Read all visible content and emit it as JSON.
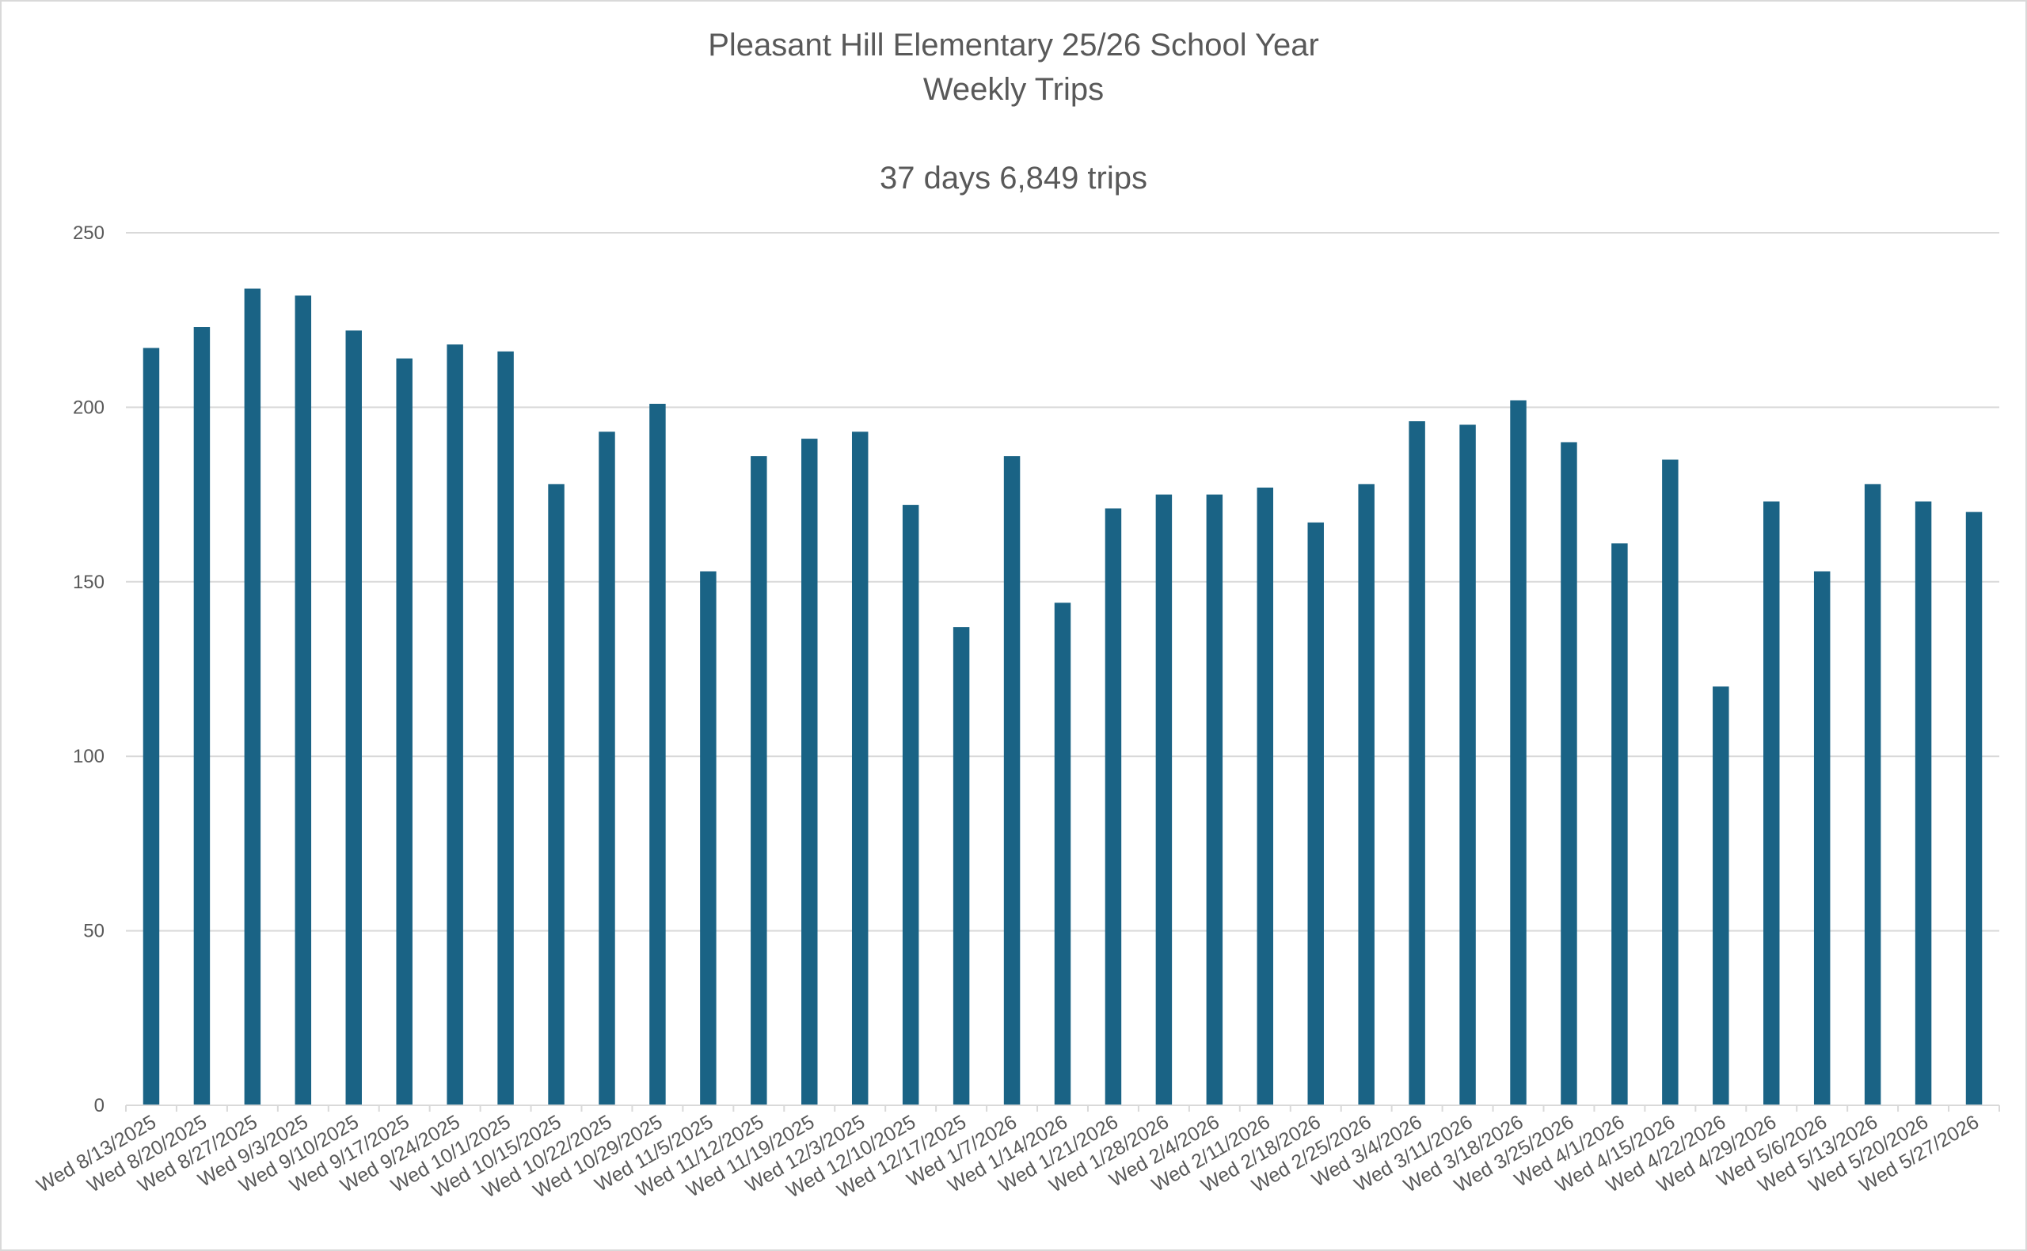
{
  "chart_data": {
    "type": "bar",
    "title_lines": [
      "Pleasant Hill Elementary 25/26 School Year",
      "Weekly Trips",
      "",
      "37 days 6,849 trips"
    ],
    "xlabel": "",
    "ylabel": "",
    "ylim": [
      0,
      250
    ],
    "y_ticks": [
      0,
      50,
      100,
      150,
      200,
      250
    ],
    "y_tick_labels": [
      "0",
      "50",
      "100",
      "150",
      "200",
      "250"
    ],
    "grid": true,
    "legend": "none",
    "bar_color": "#1a6385",
    "categories": [
      "Wed 8/13/2025",
      "Wed 8/20/2025",
      "Wed 8/27/2025",
      "Wed 9/3/2025",
      "Wed 9/10/2025",
      "Wed 9/17/2025",
      "Wed 9/24/2025",
      "Wed 10/1/2025",
      "Wed 10/15/2025",
      "Wed 10/22/2025",
      "Wed 10/29/2025",
      "Wed 11/5/2025",
      "Wed 11/12/2025",
      "Wed 11/19/2025",
      "Wed 12/3/2025",
      "Wed 12/10/2025",
      "Wed 12/17/2025",
      "Wed 1/7/2026",
      "Wed 1/14/2026",
      "Wed 1/21/2026",
      "Wed 1/28/2026",
      "Wed 2/4/2026",
      "Wed 2/11/2026",
      "Wed 2/18/2026",
      "Wed 2/25/2026",
      "Wed 3/4/2026",
      "Wed 3/11/2026",
      "Wed 3/18/2026",
      "Wed 3/25/2026",
      "Wed 4/1/2026",
      "Wed 4/15/2026",
      "Wed 4/22/2026",
      "Wed 4/29/2026",
      "Wed 5/6/2026",
      "Wed 5/13/2026",
      "Wed 5/20/2026",
      "Wed 5/27/2026"
    ],
    "values": [
      217,
      223,
      234,
      232,
      222,
      214,
      218,
      216,
      178,
      193,
      201,
      153,
      186,
      191,
      193,
      172,
      137,
      186,
      144,
      171,
      175,
      175,
      177,
      167,
      178,
      196,
      195,
      202,
      190,
      161,
      185,
      120,
      173,
      153,
      178,
      173,
      170
    ]
  }
}
